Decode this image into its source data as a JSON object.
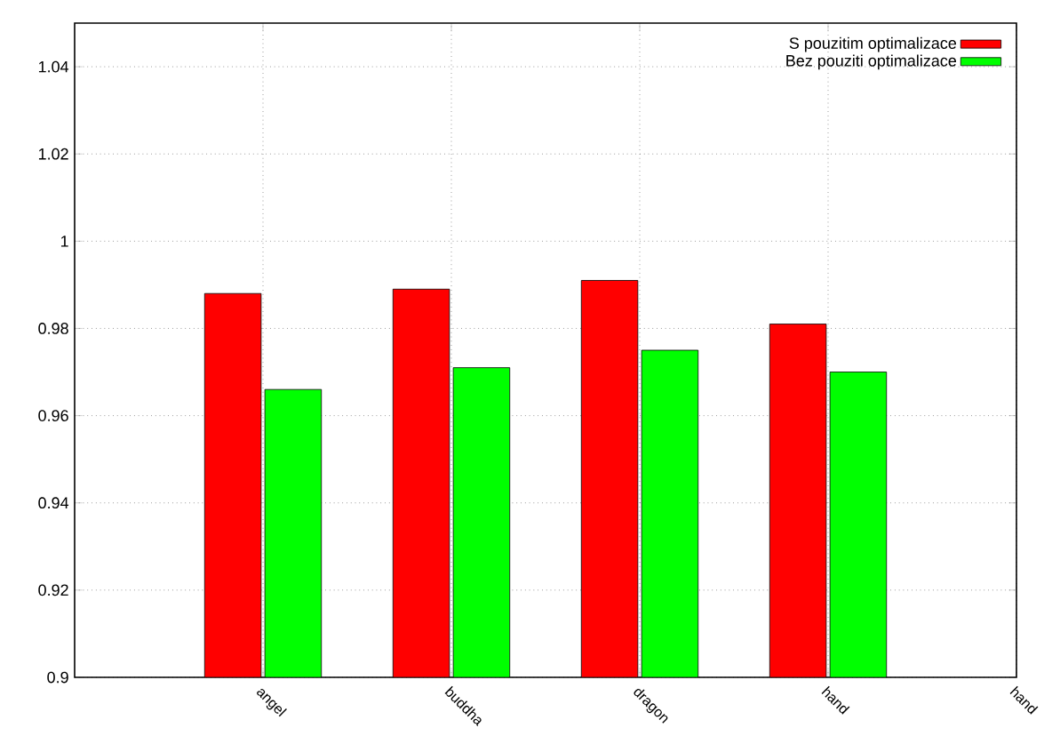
{
  "chart_data": {
    "type": "bar",
    "categories": [
      "angel",
      "buddha",
      "dragon",
      "hand",
      "hand"
    ],
    "series": [
      {
        "name": "S pouzitim optimalizace",
        "color": "#ff0000",
        "values": [
          0.988,
          0.989,
          0.991,
          0.981,
          null
        ]
      },
      {
        "name": "Bez pouziti optimalizace",
        "color": "#00ff00",
        "values": [
          0.966,
          0.971,
          0.975,
          0.97,
          null
        ]
      }
    ],
    "ylim": [
      0.9,
      1.05
    ],
    "yticks": [
      0.9,
      0.92,
      0.94,
      0.96,
      0.98,
      1,
      1.02,
      1.04
    ],
    "grid": true,
    "legend": "top right"
  }
}
